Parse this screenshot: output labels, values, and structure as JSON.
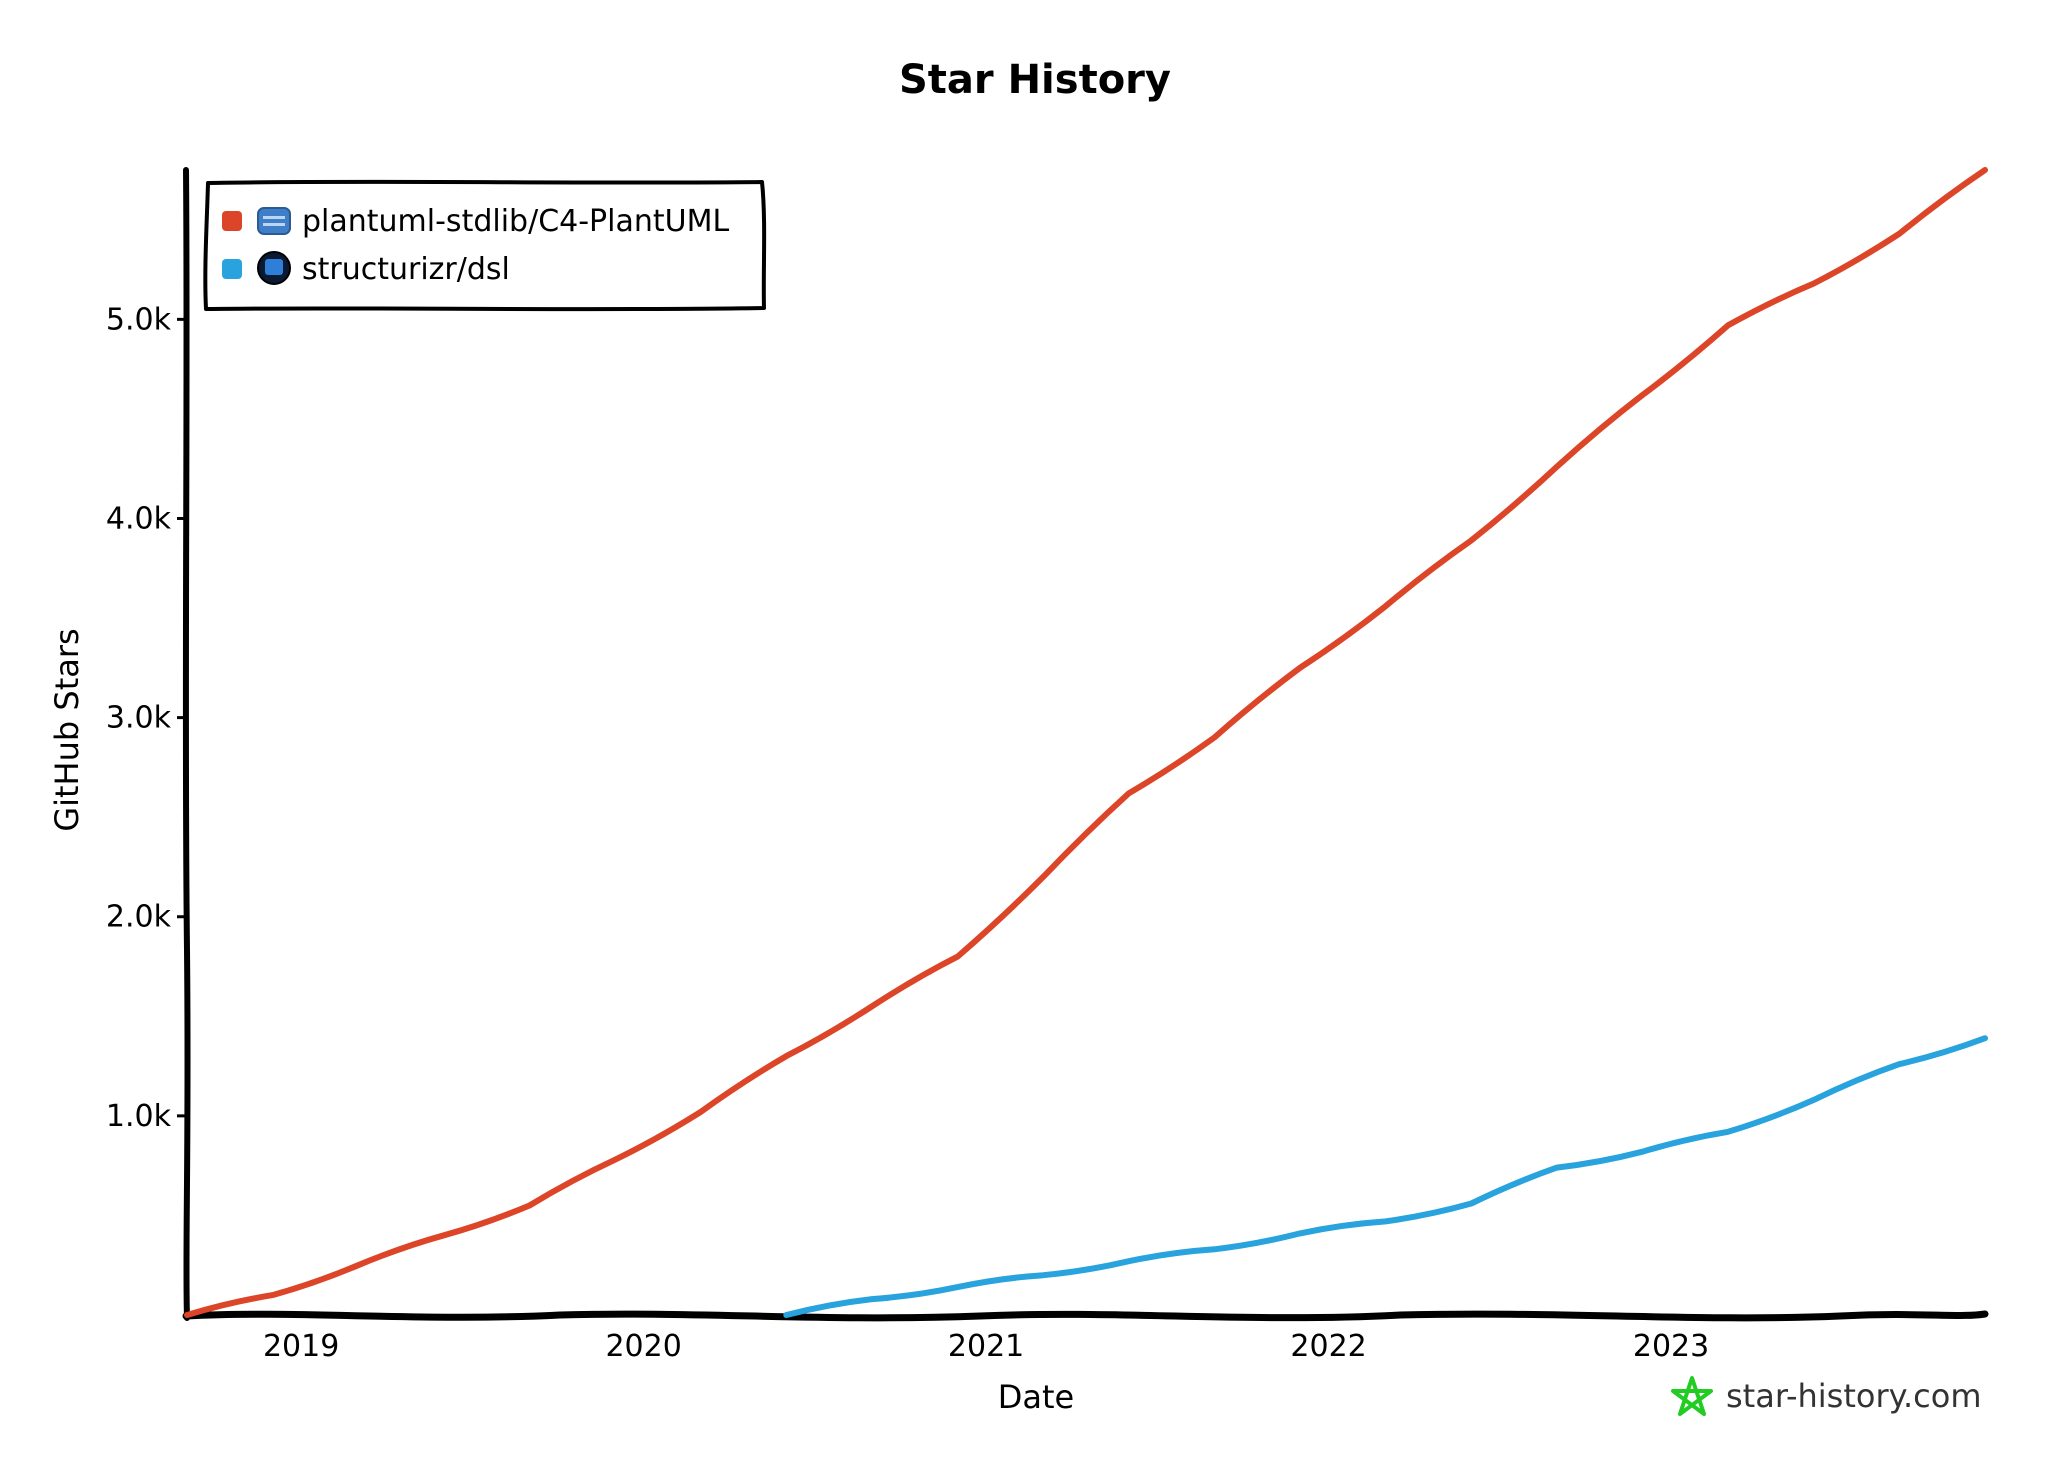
{
  "chart_data": {
    "type": "line",
    "title": "Star History",
    "xlabel": "Date",
    "ylabel": "GitHub Stars",
    "x_tick_labels": [
      "2019",
      "2020",
      "2021",
      "2022",
      "2023"
    ],
    "y_tick_labels": [
      "1.0k",
      "2.0k",
      "3.0k",
      "4.0k",
      "5.0k"
    ],
    "x_range": [
      "2018-09",
      "2023-12"
    ],
    "ylim": [
      0,
      5750
    ],
    "grid": false,
    "legend_position": "top-left",
    "series": [
      {
        "name": "plantuml-stdlib/C4-PlantUML",
        "color": "#dd4528",
        "icon": "c4-plantuml-avatar-icon",
        "points": [
          [
            "2018-09",
            0
          ],
          [
            "2018-12",
            100
          ],
          [
            "2019-03",
            250
          ],
          [
            "2019-06",
            400
          ],
          [
            "2019-09",
            550
          ],
          [
            "2019-12",
            780
          ],
          [
            "2020-03",
            1020
          ],
          [
            "2020-06",
            1300
          ],
          [
            "2020-09",
            1550
          ],
          [
            "2020-12",
            1800
          ],
          [
            "2021-03",
            2200
          ],
          [
            "2021-06",
            2620
          ],
          [
            "2021-09",
            2900
          ],
          [
            "2021-12",
            3250
          ],
          [
            "2022-03",
            3560
          ],
          [
            "2022-06",
            3890
          ],
          [
            "2022-09",
            4260
          ],
          [
            "2022-12",
            4620
          ],
          [
            "2023-03",
            4970
          ],
          [
            "2023-06",
            5180
          ],
          [
            "2023-09",
            5430
          ],
          [
            "2023-12",
            5750
          ]
        ]
      },
      {
        "name": "structurizr/dsl",
        "color": "#28a3dd",
        "icon": "structurizr-avatar-icon",
        "points": [
          [
            "2020-06",
            0
          ],
          [
            "2020-09",
            80
          ],
          [
            "2020-12",
            140
          ],
          [
            "2021-03",
            200
          ],
          [
            "2021-06",
            270
          ],
          [
            "2021-09",
            330
          ],
          [
            "2021-12",
            410
          ],
          [
            "2022-03",
            470
          ],
          [
            "2022-06",
            560
          ],
          [
            "2022-09",
            740
          ],
          [
            "2022-12",
            820
          ],
          [
            "2023-03",
            920
          ],
          [
            "2023-06",
            1080
          ],
          [
            "2023-09",
            1260
          ],
          [
            "2023-12",
            1390
          ]
        ]
      }
    ]
  },
  "watermark": {
    "text": "star-history.com",
    "icon": "star-logo-icon",
    "color": "#22cc22"
  }
}
